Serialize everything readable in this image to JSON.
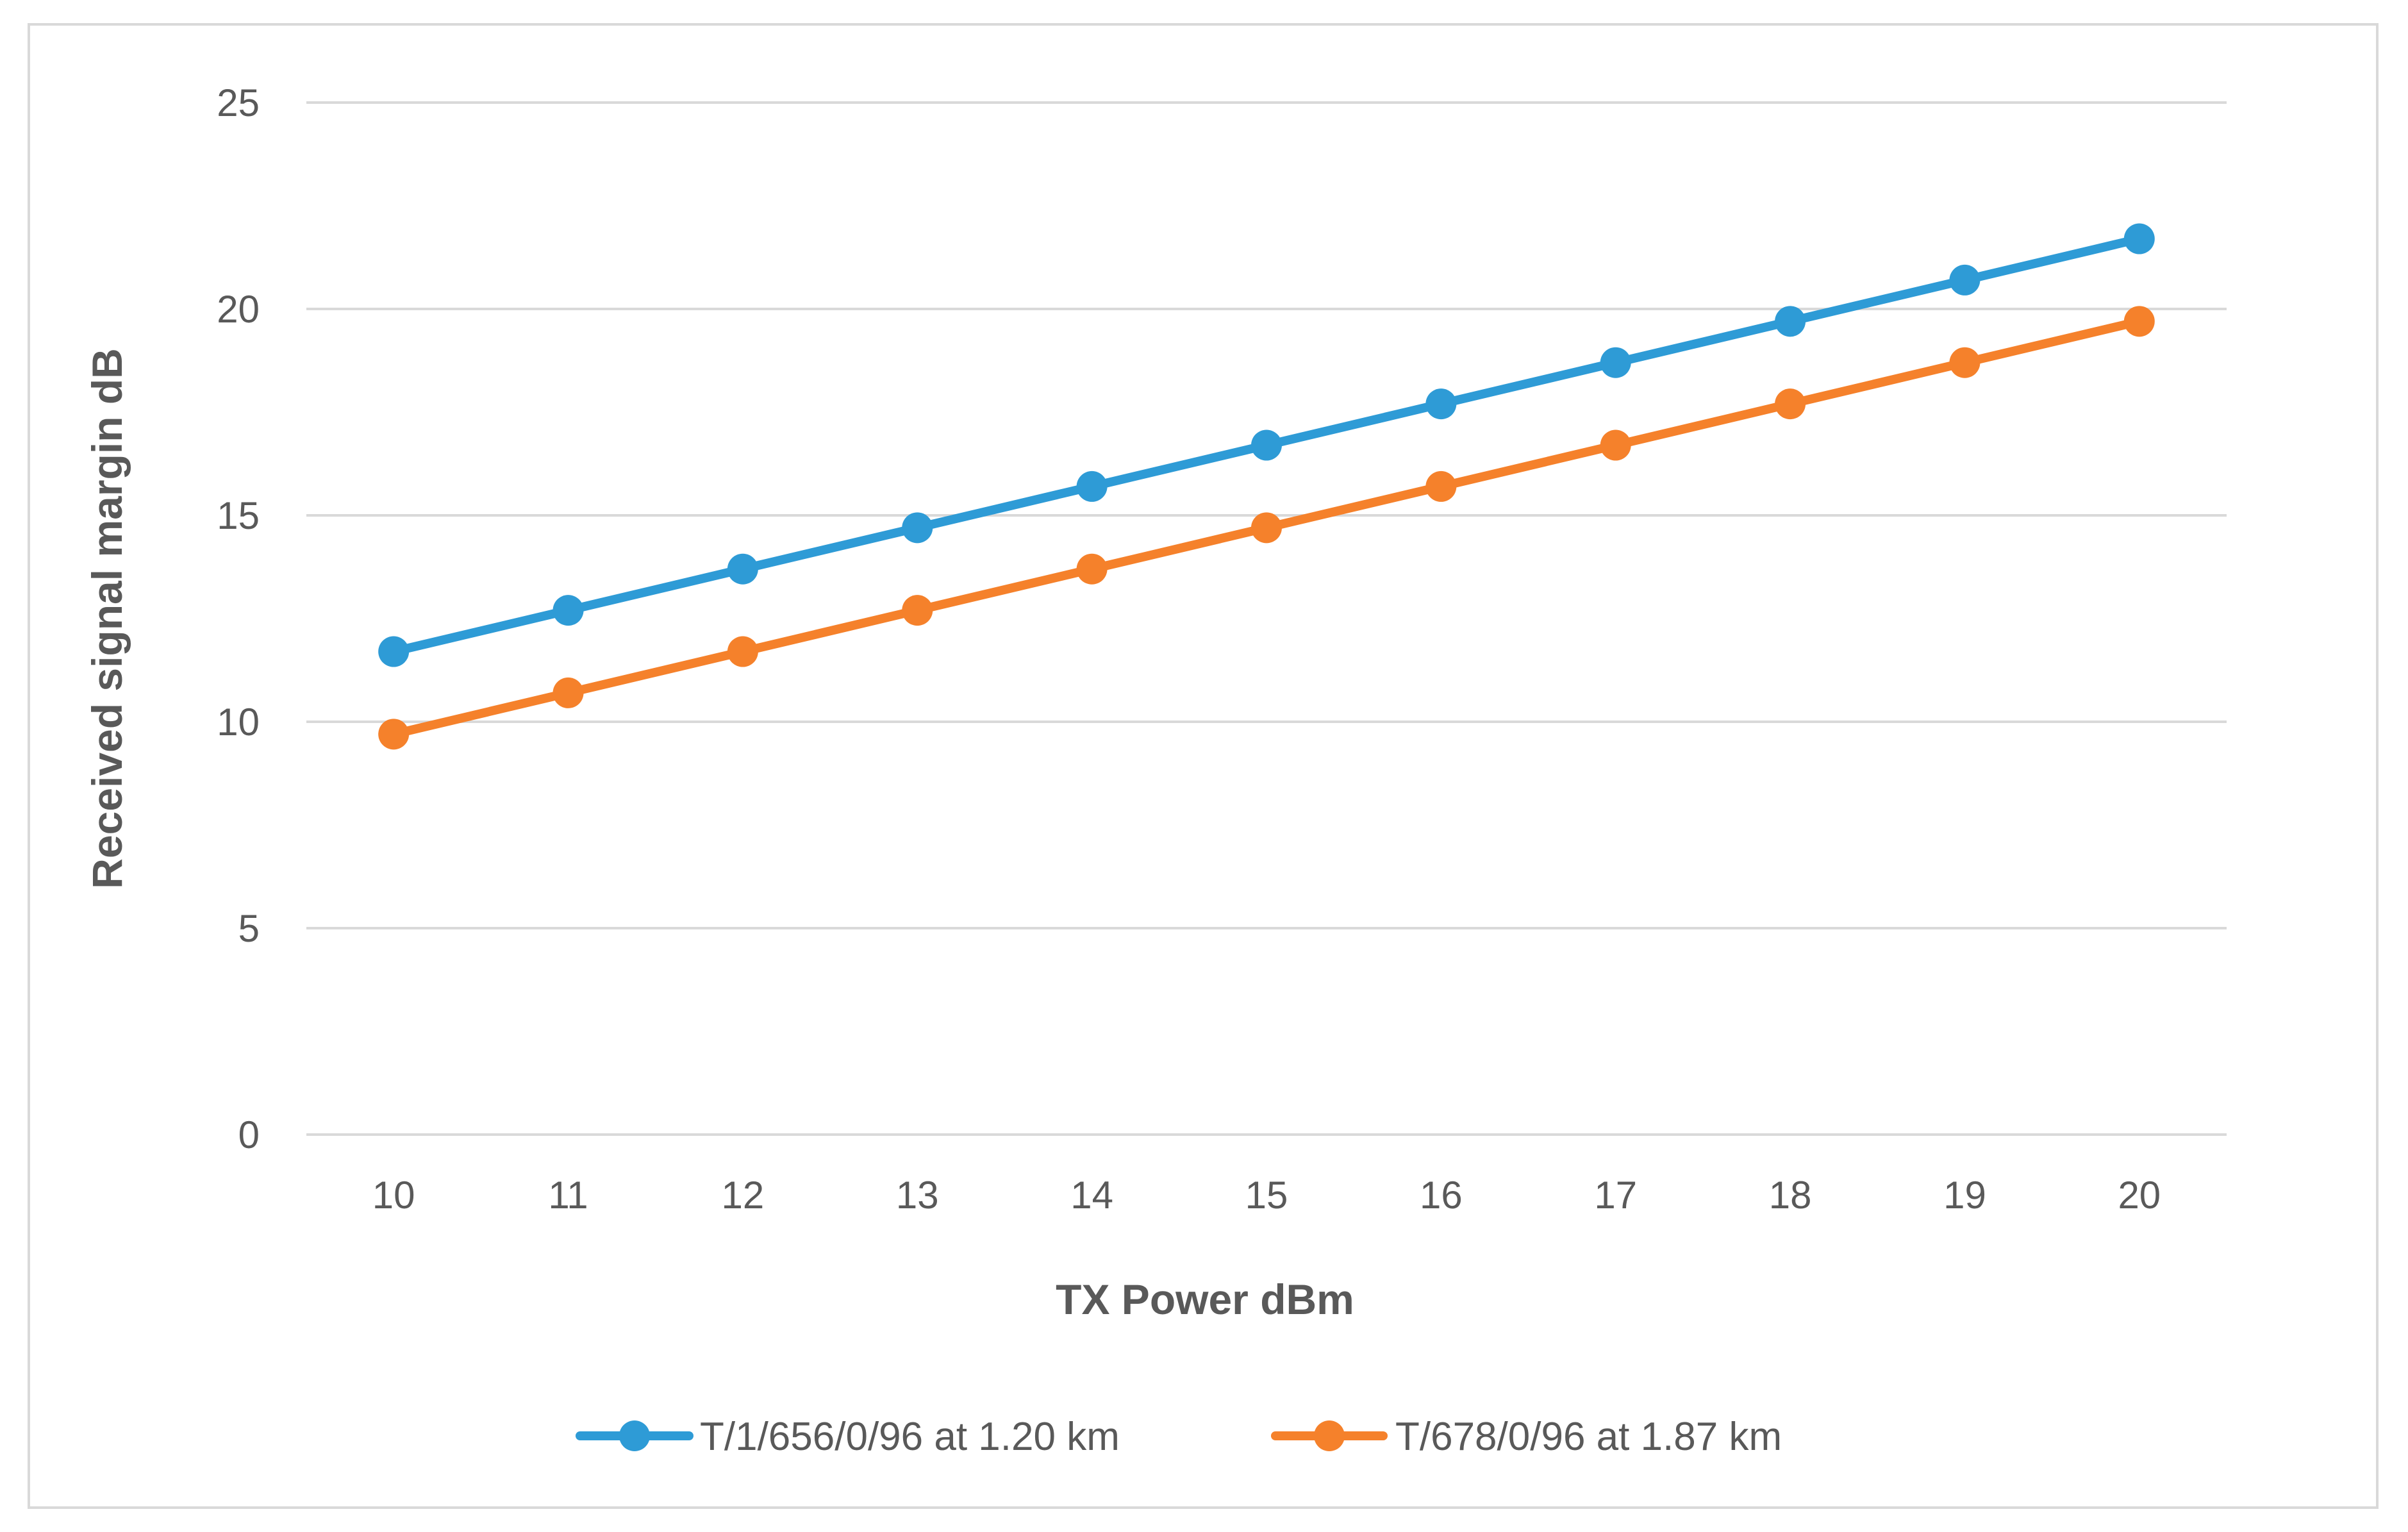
{
  "chart_data": {
    "type": "line",
    "xlabel": "TX Power dBm",
    "ylabel": "Received signal margin dB",
    "categories": [
      "10",
      "11",
      "12",
      "13",
      "14",
      "15",
      "16",
      "17",
      "18",
      "19",
      "20"
    ],
    "x": [
      10,
      11,
      12,
      13,
      14,
      15,
      16,
      17,
      18,
      19,
      20
    ],
    "ylim": [
      0,
      25
    ],
    "yticks": [
      "0",
      "5",
      "10",
      "15",
      "20",
      "25"
    ],
    "grid": true,
    "legend_position": "bottom",
    "series": [
      {
        "name": "T/1/656/0/96 at 1.20 km",
        "color": "#2e9bd6",
        "values": [
          11.7,
          12.7,
          13.7,
          14.7,
          15.7,
          16.7,
          17.7,
          18.7,
          19.7,
          20.7,
          21.7
        ]
      },
      {
        "name": "T/678/0/96 at 1.87 km",
        "color": "#f5812b",
        "values": [
          9.7,
          10.7,
          11.7,
          12.7,
          13.7,
          14.7,
          15.7,
          16.7,
          17.7,
          18.7,
          19.7
        ]
      }
    ]
  }
}
